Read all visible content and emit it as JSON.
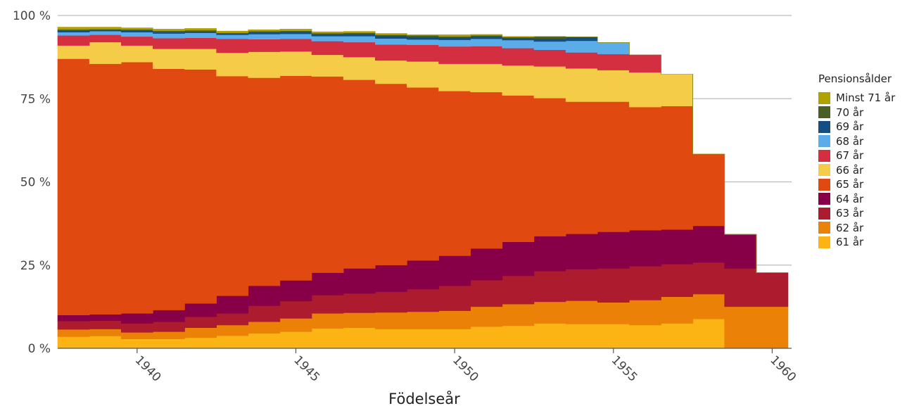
{
  "chart_data": {
    "type": "area",
    "stacked": true,
    "step": true,
    "xlabel": "Födelseår",
    "ylabel": "",
    "x": [
      1938,
      1939,
      1940,
      1941,
      1942,
      1943,
      1944,
      1945,
      1946,
      1947,
      1948,
      1949,
      1950,
      1951,
      1952,
      1953,
      1954,
      1955,
      1956,
      1957,
      1958,
      1959,
      1960
    ],
    "ylim": [
      0,
      100
    ],
    "y_ticks": [
      "0 %",
      "25 %",
      "50 %",
      "75 %",
      "100 %"
    ],
    "y_tick_values": [
      0,
      25,
      50,
      75,
      100
    ],
    "x_ticks": [
      "1940",
      "1945",
      "1950",
      "1955",
      "1960"
    ],
    "x_tick_values": [
      1940,
      1945,
      1950,
      1955,
      1960
    ],
    "grid": "horizontal",
    "legend_title": "Pensionsålder",
    "legend_position": "right",
    "series": [
      {
        "name": "61 år",
        "color": "#fcb314",
        "values": [
          3.5,
          3.7,
          2.8,
          2.8,
          3.2,
          3.8,
          4.5,
          5.0,
          6.0,
          6.2,
          5.8,
          5.8,
          5.8,
          6.5,
          6.8,
          7.5,
          7.3,
          7.3,
          7.0,
          7.5,
          8.8,
          0,
          0
        ]
      },
      {
        "name": "62 år",
        "color": "#eb8106",
        "values": [
          2.2,
          2.1,
          2.0,
          2.2,
          3.0,
          3.2,
          3.5,
          4.0,
          4.5,
          4.5,
          5.0,
          5.2,
          5.5,
          6.0,
          6.5,
          6.5,
          7.0,
          6.5,
          7.5,
          8.0,
          7.5,
          12.5,
          12.5
        ]
      },
      {
        "name": "63 år",
        "color": "#ad1c2e",
        "values": [
          2.5,
          2.5,
          2.7,
          3.0,
          3.3,
          3.5,
          4.8,
          5.2,
          5.5,
          5.8,
          6.2,
          6.8,
          7.5,
          8.0,
          8.5,
          9.2,
          9.5,
          10.2,
          10.2,
          9.8,
          9.5,
          11.5,
          10.2
        ]
      },
      {
        "name": "64 år",
        "color": "#870047",
        "values": [
          1.8,
          1.9,
          3.0,
          3.5,
          4.0,
          5.3,
          6.0,
          6.2,
          6.7,
          7.5,
          8.0,
          8.6,
          9.0,
          9.5,
          10.2,
          10.5,
          10.6,
          11.0,
          10.8,
          10.4,
          11.0,
          10.2,
          0
        ]
      },
      {
        "name": "65 år",
        "color": "#e0490f",
        "values": [
          77,
          75.3,
          75.5,
          72.5,
          70.3,
          66,
          62.5,
          61.5,
          59,
          56.7,
          54.5,
          52,
          49.5,
          47,
          44,
          41.5,
          39.7,
          39.1,
          37,
          37.1,
          21.6,
          0,
          0
        ]
      },
      {
        "name": "66 år",
        "color": "#f5cc47",
        "values": [
          4.0,
          6.5,
          5.0,
          6.0,
          6.2,
          7.0,
          7.8,
          7.3,
          6.5,
          6.8,
          7.0,
          7.8,
          8.2,
          8.5,
          9.0,
          9.5,
          10.0,
          9.5,
          10.4,
          9.6,
          0,
          0,
          0
        ]
      },
      {
        "name": "67 år",
        "color": "#d42f40",
        "values": [
          3.0,
          2.2,
          2.7,
          3.2,
          3.3,
          4.2,
          3.8,
          3.8,
          4.1,
          4.5,
          4.8,
          5.0,
          5.2,
          5.3,
          5.2,
          5.0,
          4.8,
          4.8,
          5.3,
          0,
          0,
          0,
          0
        ]
      },
      {
        "name": "68 år",
        "color": "#5badea",
        "values": [
          1.0,
          1.1,
          1.3,
          1.4,
          1.5,
          1.2,
          1.5,
          1.5,
          1.5,
          1.8,
          1.8,
          1.6,
          2.0,
          2.2,
          2.4,
          2.5,
          3.5,
          3.5,
          0,
          0,
          0,
          0,
          0
        ]
      },
      {
        "name": "69 år",
        "color": "#134f80",
        "values": [
          0.5,
          0.4,
          0.5,
          0.4,
          0.4,
          0.4,
          0.6,
          0.6,
          0.6,
          0.7,
          0.8,
          0.8,
          0.7,
          0.7,
          0.6,
          0.9,
          1.2,
          0,
          0,
          0,
          0,
          0,
          0
        ]
      },
      {
        "name": "70 år",
        "color": "#4a5f23",
        "values": [
          0.3,
          0.2,
          0.3,
          0.4,
          0.4,
          0.2,
          0.3,
          0.3,
          0.3,
          0.3,
          0.3,
          0.4,
          0.3,
          0.3,
          0.3,
          0.6,
          0,
          0,
          0,
          0,
          0,
          0,
          0
        ]
      },
      {
        "name": "Minst 71 år",
        "color": "#b0a000",
        "values": [
          0.7,
          0.6,
          0.5,
          0.5,
          0.5,
          0.5,
          0.4,
          0.5,
          0.4,
          0.4,
          0.4,
          0.2,
          0.5,
          0.3,
          0.2,
          0,
          0,
          0,
          0,
          0,
          0,
          0,
          0
        ]
      }
    ]
  }
}
